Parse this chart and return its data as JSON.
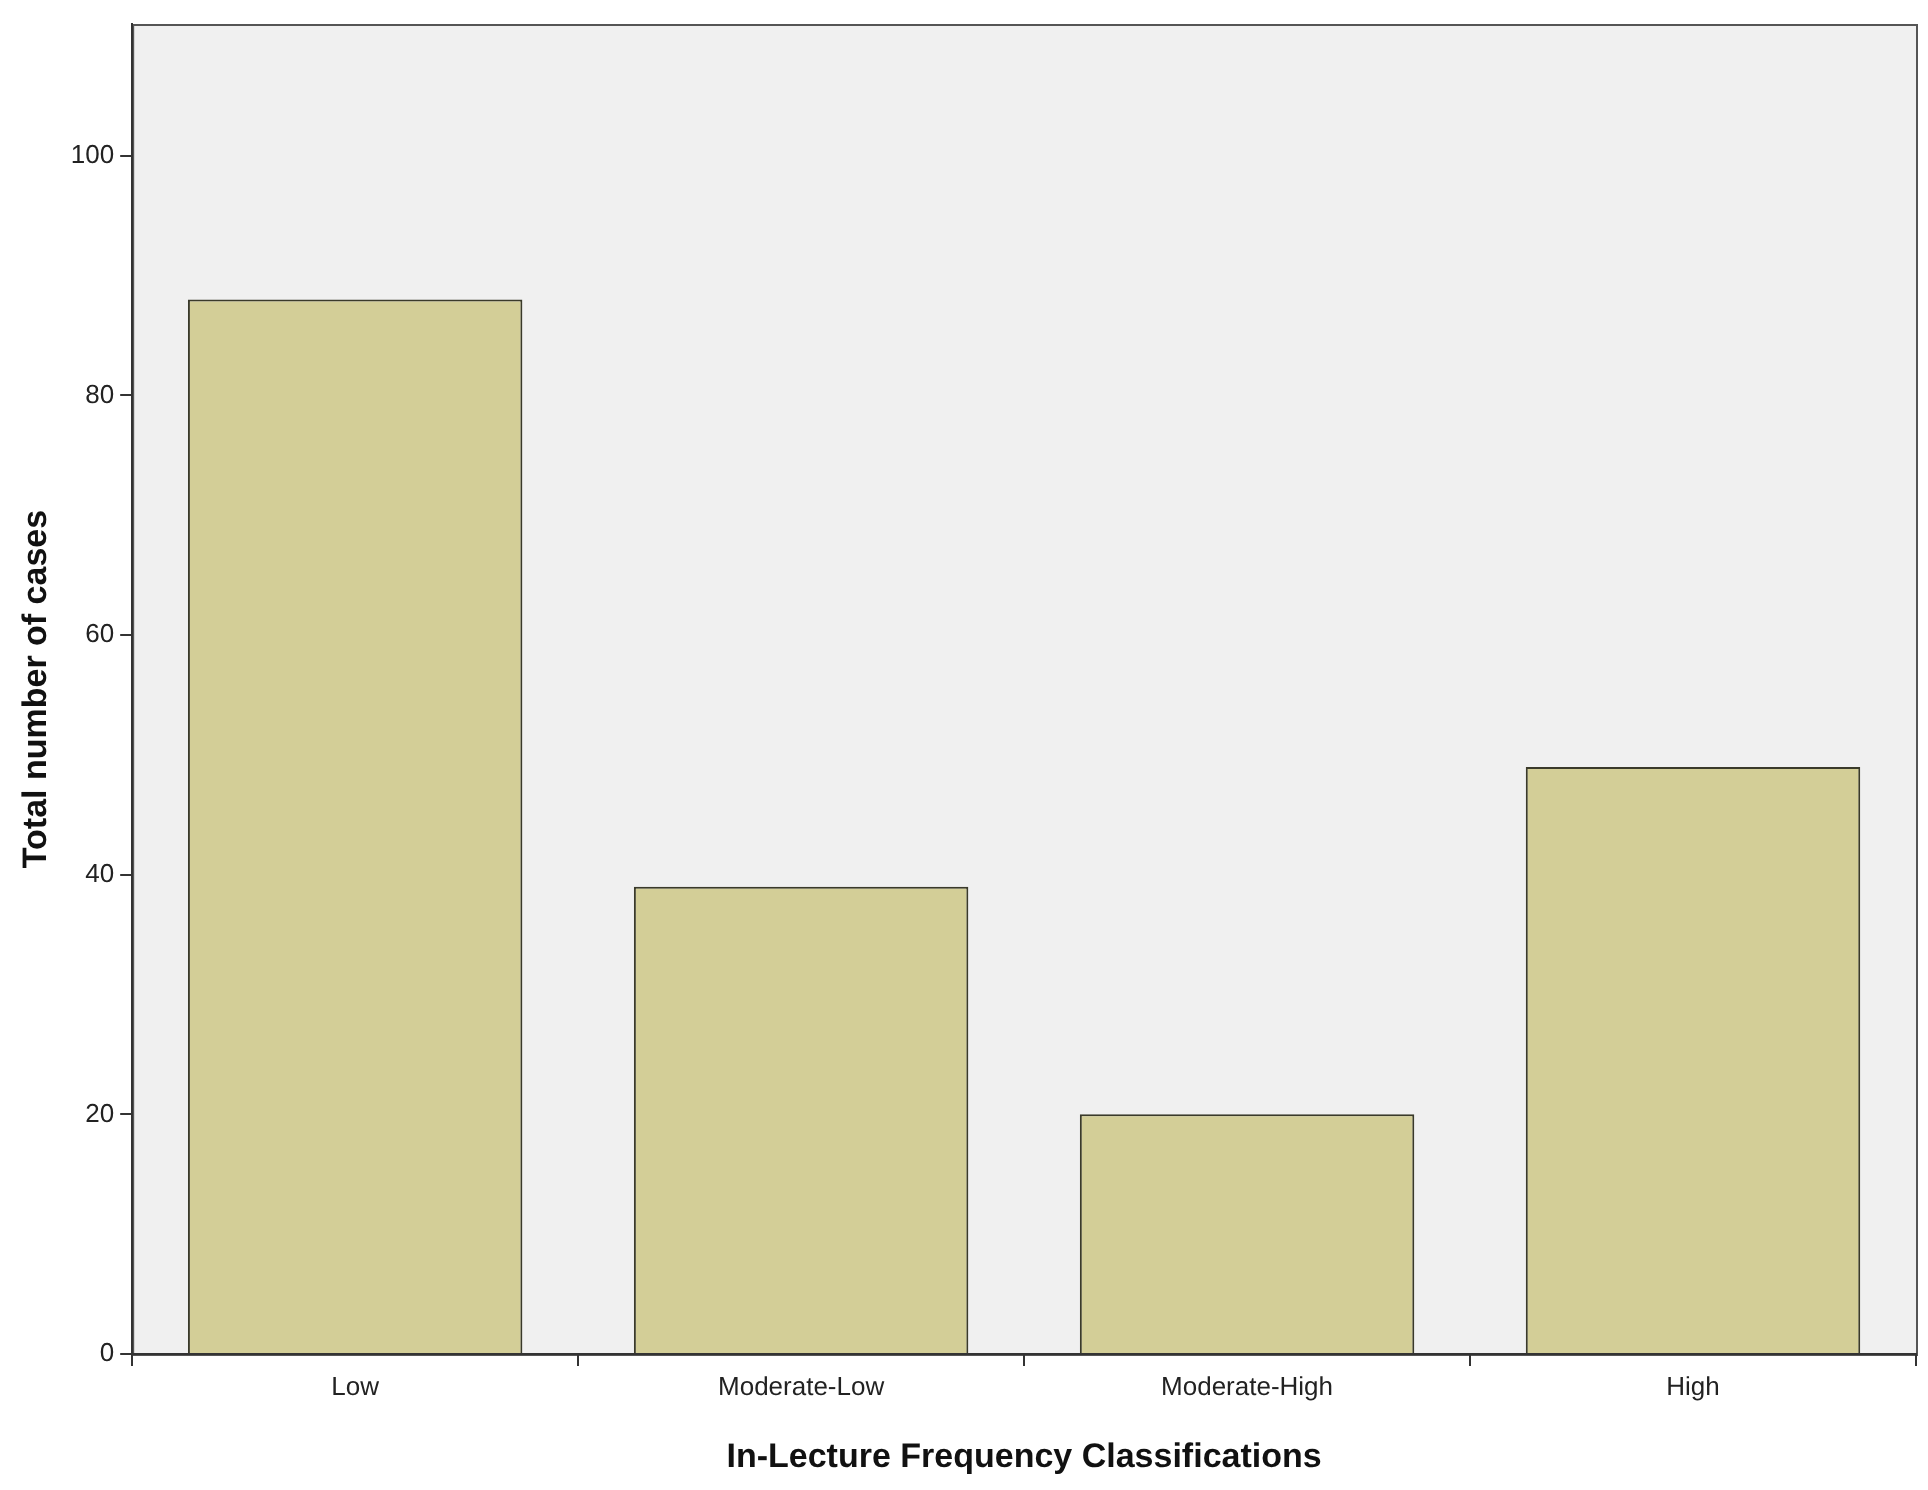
{
  "chart_data": {
    "type": "bar",
    "xlabel": "In-Lecture Frequency Classifications",
    "ylabel": "Total number of cases",
    "categories": [
      "Low",
      "Moderate-Low",
      "Moderate-High",
      "High"
    ],
    "values": [
      88,
      39,
      20,
      49
    ],
    "color": "#d3ce97",
    "ylim": [
      0,
      111
    ],
    "yticks": [
      0,
      20,
      40,
      60,
      80,
      100
    ],
    "grid": false,
    "legend": false
  }
}
